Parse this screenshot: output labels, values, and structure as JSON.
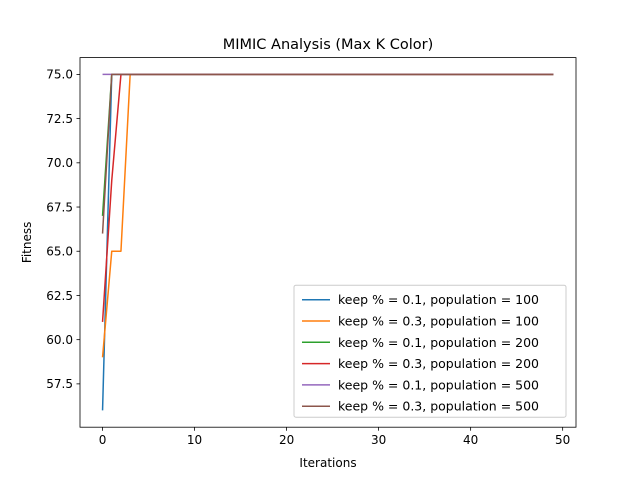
{
  "chart_data": {
    "type": "line",
    "title": "MIMIC Analysis (Max K Color)",
    "xlabel": "Iterations",
    "ylabel": "Fitness",
    "xlim": [
      -2.45,
      51.45
    ],
    "ylim": [
      55.05,
      75.95
    ],
    "xticks": [
      0,
      10,
      20,
      30,
      40,
      50
    ],
    "xtick_labels": [
      "0",
      "10",
      "20",
      "30",
      "40",
      "50"
    ],
    "yticks": [
      57.5,
      60.0,
      62.5,
      65.0,
      67.5,
      70.0,
      72.5,
      75.0
    ],
    "ytick_labels": [
      "57.5",
      "60.0",
      "62.5",
      "65.0",
      "67.5",
      "70.0",
      "72.5",
      "75.0"
    ],
    "grid": false,
    "legend_position": "lower-right",
    "x_end": 49,
    "plateau": 75,
    "series": [
      {
        "name": "keep % = 0.1, population = 100",
        "color": "#1f77b4",
        "head": [
          56,
          75
        ]
      },
      {
        "name": "keep % = 0.3, population = 100",
        "color": "#ff7f0e",
        "head": [
          59,
          65,
          65,
          75
        ]
      },
      {
        "name": "keep % = 0.1, population = 200",
        "color": "#2ca02c",
        "head": [
          67,
          75
        ]
      },
      {
        "name": "keep % = 0.3, population = 200",
        "color": "#d62728",
        "head": [
          61,
          69,
          75
        ]
      },
      {
        "name": "keep % = 0.1, population = 500",
        "color": "#9467bd",
        "head": [
          75,
          75
        ]
      },
      {
        "name": "keep % = 0.3, population = 500",
        "color": "#8c564b",
        "head": [
          66,
          75
        ]
      }
    ]
  }
}
